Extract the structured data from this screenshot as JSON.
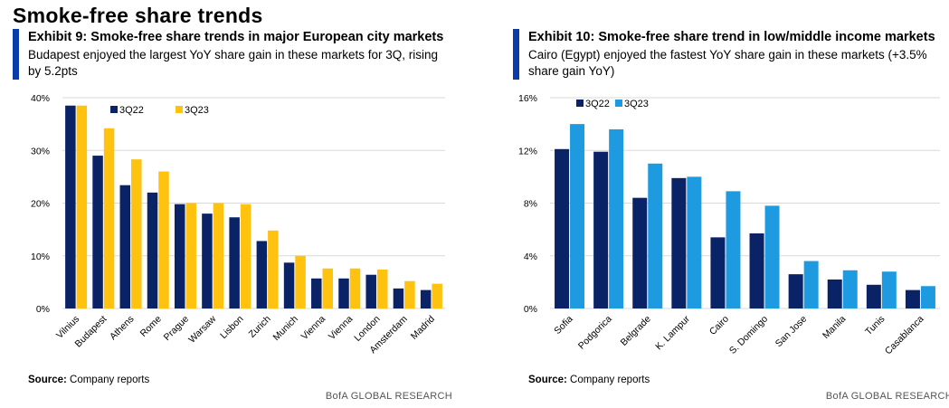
{
  "page_title": "Smoke-free share trends",
  "brand": "BofA GLOBAL RESEARCH",
  "colors": {
    "accent": "#0a3ba8",
    "navy": "#0a2266",
    "gold": "#ffc20e",
    "lightblue": "#1e9be0"
  },
  "exhibits": [
    {
      "title": "Exhibit 9: Smoke-free share trends in major European city markets",
      "subtitle": "Budapest enjoyed the largest YoY share gain in these markets for 3Q, rising by 5.2pts",
      "source_label": "Source:",
      "source_text": "Company reports"
    },
    {
      "title": "Exhibit 10: Smoke-free share trend in low/middle income markets",
      "subtitle": "Cairo (Egypt) enjoyed the fastest YoY share gain in these markets (+3.5% share gain YoY)",
      "source_label": "Source:",
      "source_text": "Company reports"
    }
  ],
  "chart_data": [
    {
      "type": "bar",
      "categories": [
        "Vilnius",
        "Budapest",
        "Athens",
        "Rome",
        "Prague",
        "Warsaw",
        "Lisbon",
        "Zurich",
        "Munich",
        "Vienna",
        "Vienna",
        "London",
        "Amsterdam",
        "Madrid"
      ],
      "series": [
        {
          "name": "3Q22",
          "values": [
            38.5,
            29,
            23.4,
            22,
            19.8,
            18,
            17.3,
            12.8,
            8.7,
            5.7,
            5.7,
            6.4,
            3.8,
            3.5
          ]
        },
        {
          "name": "3Q23",
          "values": [
            38.5,
            34.2,
            28.3,
            26,
            20,
            20,
            19.8,
            14.8,
            10,
            7.6,
            7.6,
            7.4,
            5.2,
            4.7
          ]
        }
      ],
      "yticks": [
        "0%",
        "10%",
        "20%",
        "30%",
        "40%"
      ],
      "ylim": [
        0,
        40
      ],
      "grid": true,
      "legend": "top-center"
    },
    {
      "type": "bar",
      "categories": [
        "Sofia",
        "Podgorica",
        "Belgrade",
        "K. Lampur",
        "Cairo",
        "S. Domingo",
        "San Jose",
        "Manila",
        "Tunis",
        "Casablanca"
      ],
      "series": [
        {
          "name": "3Q22",
          "values": [
            12.1,
            11.9,
            8.4,
            9.9,
            5.4,
            5.7,
            2.6,
            2.2,
            1.8,
            1.4
          ]
        },
        {
          "name": "3Q23",
          "values": [
            14,
            13.6,
            11,
            10,
            8.9,
            7.8,
            3.6,
            2.9,
            2.8,
            1.7
          ]
        }
      ],
      "yticks": [
        "0%",
        "4%",
        "8%",
        "12%",
        "16%"
      ],
      "ylim": [
        0,
        16
      ],
      "grid": true,
      "legend": "top-left"
    }
  ]
}
